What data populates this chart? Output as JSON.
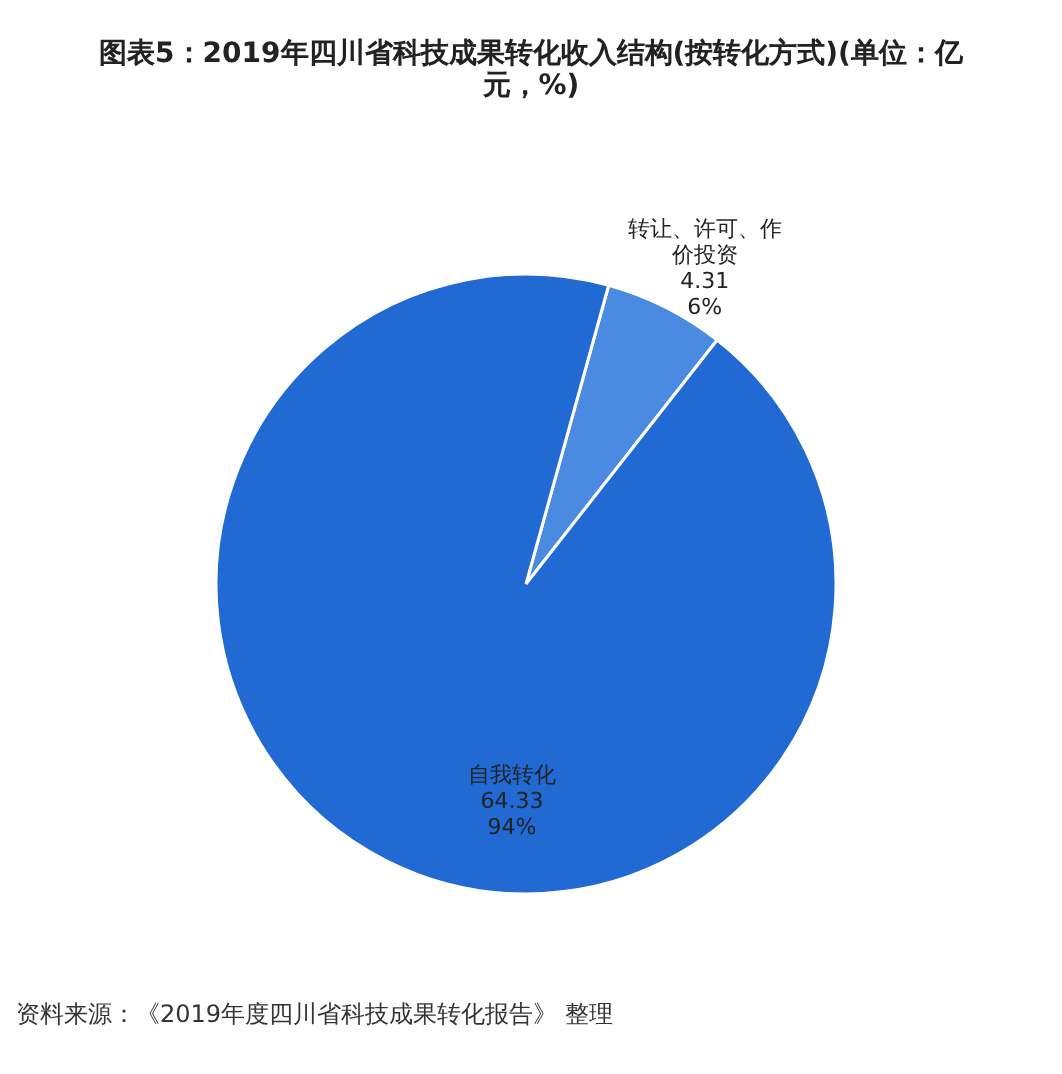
{
  "chart_data": {
    "type": "pie",
    "title": "图表5：2019年四川省科技成果转化收入结构(按转化方式)(单位：亿元，%)",
    "categories": [
      "转让、许可、作价投资",
      "自我转化"
    ],
    "values": [
      4.31,
      64.33
    ],
    "colors": [
      "#4a8ae0",
      "#2169d3"
    ],
    "value_labels": [
      "4.31\n6%",
      "64.33\n94%"
    ],
    "annotations": [
      "资料来源：《2019年度四川省科技成果转化报告》 整理"
    ]
  }
}
